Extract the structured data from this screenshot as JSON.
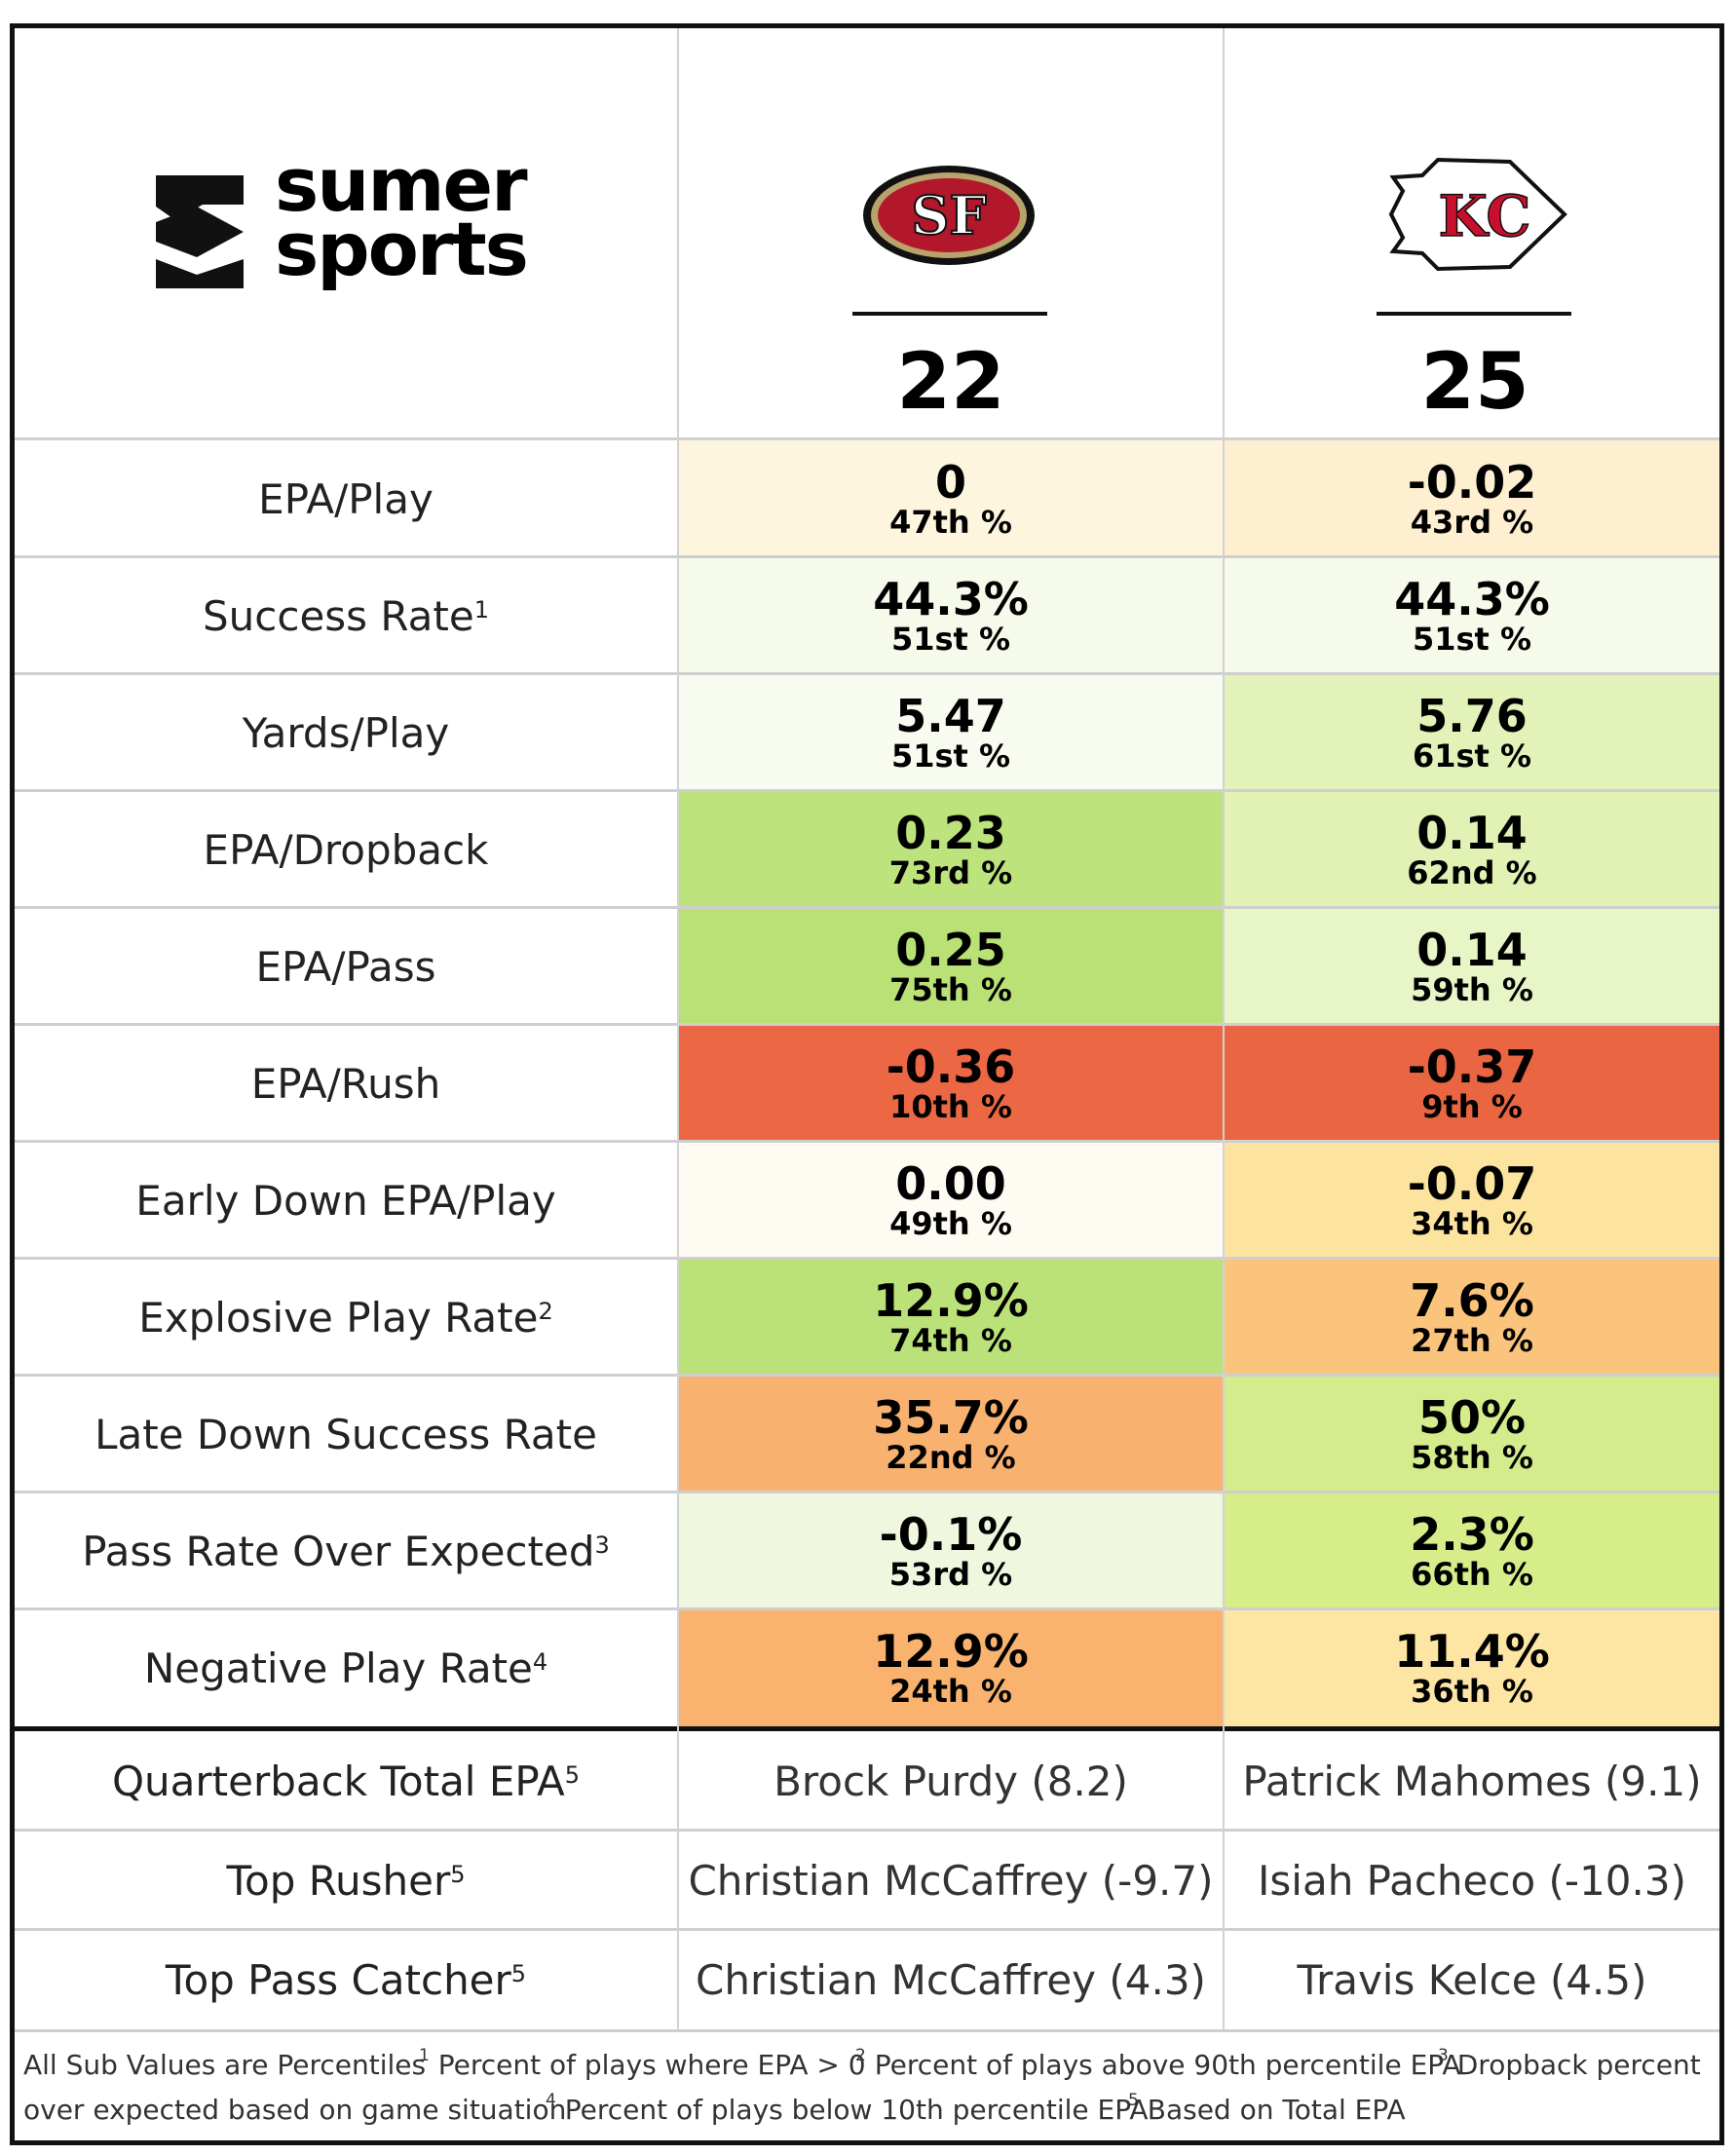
{
  "brand": {
    "line1": "sumer",
    "line2": "sports"
  },
  "teams": [
    {
      "logo": "49ers-logo",
      "score": "22"
    },
    {
      "logo": "chiefs-logo",
      "score": "25"
    }
  ],
  "metrics": [
    {
      "label": "EPA/Play",
      "sup": "",
      "values": [
        {
          "v": "0",
          "p": "47th %",
          "bg": "#fdf5de"
        },
        {
          "v": "-0.02",
          "p": "43rd %",
          "bg": "#fdefd0"
        }
      ]
    },
    {
      "label": "Success Rate",
      "sup": "1",
      "values": [
        {
          "v": "44.3%",
          "p": "51st %",
          "bg": "#f6faeb"
        },
        {
          "v": "44.3%",
          "p": "51st %",
          "bg": "#f6faeb"
        }
      ]
    },
    {
      "label": "Yards/Play",
      "sup": "",
      "values": [
        {
          "v": "5.47",
          "p": "51st %",
          "bg": "#f8fbef"
        },
        {
          "v": "5.76",
          "p": "61st %",
          "bg": "#e3f2b8"
        }
      ]
    },
    {
      "label": "EPA/Dropback",
      "sup": "",
      "values": [
        {
          "v": "0.23",
          "p": "73rd %",
          "bg": "#bde37c"
        },
        {
          "v": "0.14",
          "p": "62nd %",
          "bg": "#e1f2b4"
        }
      ]
    },
    {
      "label": "EPA/Pass",
      "sup": "",
      "values": [
        {
          "v": "0.25",
          "p": "75th %",
          "bg": "#b9e176"
        },
        {
          "v": "0.14",
          "p": "59th %",
          "bg": "#e8f5c6"
        }
      ]
    },
    {
      "label": "EPA/Rush",
      "sup": "",
      "values": [
        {
          "v": "-0.36",
          "p": "10th %",
          "bg": "#ec6845"
        },
        {
          "v": "-0.37",
          "p": "9th %",
          "bg": "#ea6542"
        }
      ]
    },
    {
      "label": "Early Down EPA/Play",
      "sup": "",
      "values": [
        {
          "v": "0.00",
          "p": "49th %",
          "bg": "#fefbf3"
        },
        {
          "v": "-0.07",
          "p": "34th %",
          "bg": "#fde49e"
        }
      ]
    },
    {
      "label": "Explosive Play Rate",
      "sup": "2",
      "values": [
        {
          "v": "12.9%",
          "p": "74th %",
          "bg": "#bbe278"
        },
        {
          "v": "7.6%",
          "p": "27th %",
          "bg": "#fbc47c"
        }
      ]
    },
    {
      "label": "Late Down Success Rate",
      "sup": "",
      "values": [
        {
          "v": "35.7%",
          "p": "22nd %",
          "bg": "#f9b16f"
        },
        {
          "v": "50%",
          "p": "58th %",
          "bg": "#d4ec8c"
        }
      ]
    },
    {
      "label": "Pass Rate Over Expected",
      "sup": "3",
      "values": [
        {
          "v": "-0.1%",
          "p": "53rd %",
          "bg": "#eff7de"
        },
        {
          "v": "2.3%",
          "p": "66th %",
          "bg": "#d6ed8a"
        }
      ]
    },
    {
      "label": "Negative Play Rate",
      "sup": "4",
      "values": [
        {
          "v": "12.9%",
          "p": "24th %",
          "bg": "#f9b36f"
        },
        {
          "v": "11.4%",
          "p": "36th %",
          "bg": "#fde6a3"
        }
      ]
    }
  ],
  "players": [
    {
      "label": "Quarterback Total EPA",
      "sup": "5",
      "values": [
        "Brock Purdy (8.2)",
        "Patrick Mahomes (9.1)"
      ]
    },
    {
      "label": "Top Rusher",
      "sup": "5",
      "values": [
        "Christian McCaffrey (-9.7)",
        "Isiah Pacheco (-10.3)"
      ]
    },
    {
      "label": "Top Pass Catcher",
      "sup": "5",
      "values": [
        "Christian McCaffrey (4.3)",
        "Travis Kelce (4.5)"
      ]
    }
  ],
  "footnotes": {
    "all": "All Sub Values are Percentiles",
    "n1": "Percent of plays where EPA > 0",
    "n2": "Percent of plays above 90th percentile EPA",
    "n3a": "Dropback percent",
    "n3b": "over expected based on game situation",
    "n4": "Percent of plays below 10th percentile EPA",
    "n5": "Based on Total EPA"
  }
}
